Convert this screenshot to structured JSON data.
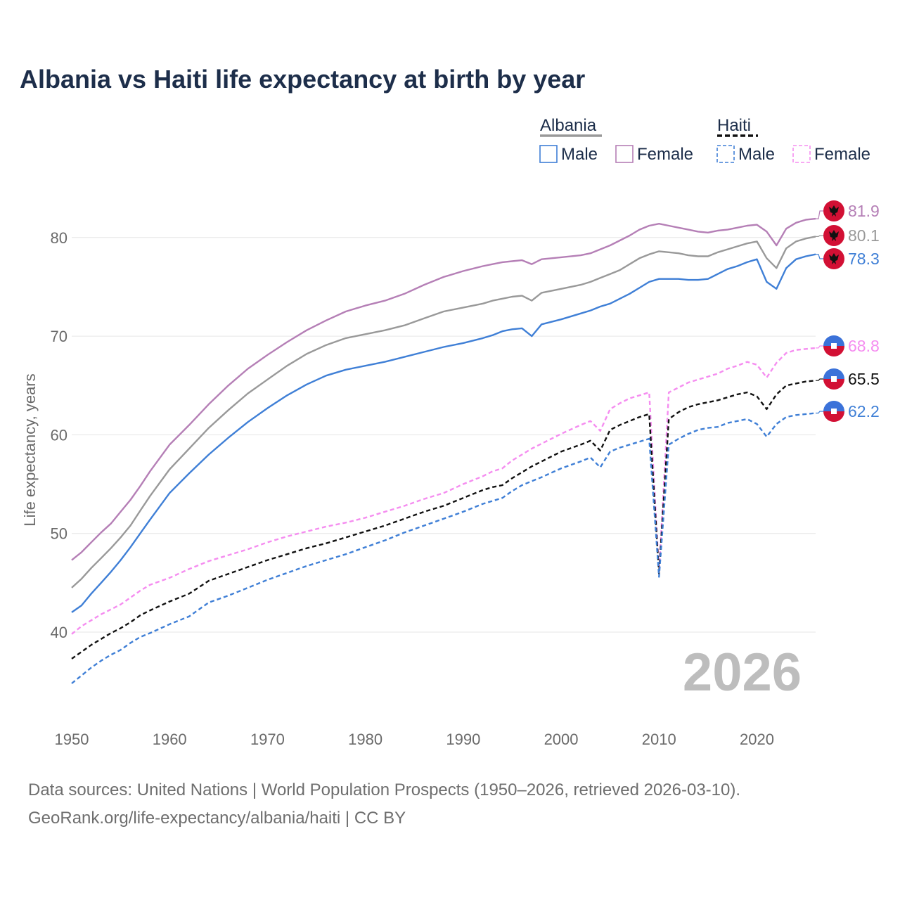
{
  "header": {
    "title": "Albania vs Haiti life expectancy at birth by year"
  },
  "legend": {
    "groups": [
      {
        "name": "Albania",
        "color": "#999999",
        "dash": false,
        "items": [
          {
            "label": "Male",
            "color": "#3f7fd6"
          },
          {
            "label": "Female",
            "color": "#b57fb6"
          }
        ]
      },
      {
        "name": "Haiti",
        "color": "#111111",
        "dash": true,
        "items": [
          {
            "label": "Male",
            "color": "#3f7fd6"
          },
          {
            "label": "Female",
            "color": "#f58df0"
          }
        ]
      }
    ]
  },
  "year_watermark": "2026",
  "footer": {
    "source_line": "Data sources: United Nations | World Population Prospects (1950–2026, retrieved 2026-03-10).",
    "credit_line": "GeoRank.org/life-expectancy/albania/haiti | CC BY"
  },
  "chart_data": {
    "type": "line",
    "title": "Albania vs Haiti life expectancy at birth by year",
    "xlabel": "",
    "ylabel": "Life expectancy, years",
    "xlim": [
      1950,
      2026
    ],
    "ylim": [
      33,
      84
    ],
    "xticks": [
      1950,
      1960,
      1970,
      1980,
      1990,
      2000,
      2010,
      2020
    ],
    "yticks": [
      40,
      50,
      60,
      70,
      80
    ],
    "grid": true,
    "x_anchors": [
      1950,
      1951,
      1952,
      1953,
      1954,
      1955,
      1956,
      1957,
      1958,
      1960,
      1962,
      1964,
      1966,
      1968,
      1970,
      1972,
      1974,
      1976,
      1978,
      1980,
      1982,
      1984,
      1986,
      1988,
      1990,
      1992,
      1993,
      1994,
      1995,
      1996,
      1997,
      1998,
      2000,
      2002,
      2003,
      2004,
      2005,
      2006,
      2007,
      2008,
      2009,
      2010,
      2011,
      2012,
      2013,
      2014,
      2015,
      2016,
      2017,
      2018,
      2019,
      2020,
      2021,
      2022,
      2023,
      2024,
      2025,
      2026
    ],
    "series": [
      {
        "name": "Albania Female",
        "country": "Albania",
        "sex": "Female",
        "color": "#b57fb6",
        "dashed": false,
        "label": "81.9",
        "values": [
          47.3,
          48.1,
          49.1,
          50.1,
          51.0,
          52.2,
          53.4,
          54.8,
          56.3,
          59.0,
          61.0,
          63.1,
          65.0,
          66.7,
          68.1,
          69.4,
          70.6,
          71.6,
          72.5,
          73.1,
          73.6,
          74.3,
          75.2,
          76.0,
          76.6,
          77.1,
          77.3,
          77.5,
          77.6,
          77.7,
          77.3,
          77.8,
          78.0,
          78.2,
          78.4,
          78.8,
          79.2,
          79.7,
          80.2,
          80.8,
          81.2,
          81.4,
          81.2,
          81.0,
          80.8,
          80.6,
          80.5,
          80.7,
          80.8,
          81.0,
          81.2,
          81.3,
          80.6,
          79.2,
          80.9,
          81.5,
          81.8,
          81.9
        ]
      },
      {
        "name": "Albania Total",
        "country": "Albania",
        "sex": "Total",
        "color": "#999999",
        "dashed": false,
        "label": "80.1",
        "values": [
          44.5,
          45.4,
          46.5,
          47.5,
          48.5,
          49.6,
          50.8,
          52.3,
          53.8,
          56.5,
          58.6,
          60.7,
          62.5,
          64.2,
          65.6,
          67.0,
          68.2,
          69.1,
          69.8,
          70.2,
          70.6,
          71.1,
          71.8,
          72.5,
          72.9,
          73.3,
          73.6,
          73.8,
          74.0,
          74.1,
          73.6,
          74.4,
          74.8,
          75.2,
          75.5,
          75.9,
          76.3,
          76.7,
          77.3,
          77.9,
          78.3,
          78.6,
          78.5,
          78.4,
          78.2,
          78.1,
          78.1,
          78.5,
          78.8,
          79.1,
          79.4,
          79.6,
          77.9,
          76.9,
          78.9,
          79.6,
          79.9,
          80.1
        ]
      },
      {
        "name": "Albania Male",
        "country": "Albania",
        "sex": "Male",
        "color": "#3f7fd6",
        "dashed": false,
        "label": "78.3",
        "values": [
          42.0,
          42.7,
          43.9,
          45.0,
          46.1,
          47.3,
          48.6,
          50.0,
          51.4,
          54.1,
          56.1,
          58.0,
          59.7,
          61.3,
          62.7,
          64.0,
          65.1,
          66.0,
          66.6,
          67.0,
          67.4,
          67.9,
          68.4,
          68.9,
          69.3,
          69.8,
          70.1,
          70.5,
          70.7,
          70.8,
          70.0,
          71.2,
          71.7,
          72.3,
          72.6,
          73.0,
          73.3,
          73.8,
          74.3,
          74.9,
          75.5,
          75.8,
          75.8,
          75.8,
          75.7,
          75.7,
          75.8,
          76.3,
          76.8,
          77.1,
          77.5,
          77.8,
          75.5,
          74.8,
          76.9,
          77.8,
          78.1,
          78.3
        ]
      },
      {
        "name": "Haiti Female",
        "country": "Haiti",
        "sex": "Female",
        "color": "#f58df0",
        "dashed": true,
        "label": "68.8",
        "values": [
          39.8,
          40.6,
          41.2,
          41.8,
          42.3,
          42.8,
          43.5,
          44.2,
          44.8,
          45.5,
          46.4,
          47.2,
          47.8,
          48.4,
          49.1,
          49.7,
          50.2,
          50.7,
          51.1,
          51.6,
          52.2,
          52.8,
          53.5,
          54.1,
          55.0,
          55.8,
          56.3,
          56.6,
          57.4,
          58.0,
          58.6,
          59.1,
          60.1,
          61.0,
          61.4,
          60.4,
          62.6,
          63.2,
          63.7,
          64.0,
          64.3,
          46.0,
          64.3,
          64.8,
          65.3,
          65.6,
          65.9,
          66.2,
          66.7,
          67.0,
          67.4,
          67.1,
          65.8,
          67.3,
          68.3,
          68.6,
          68.7,
          68.8
        ]
      },
      {
        "name": "Haiti Total",
        "country": "Haiti",
        "sex": "Total",
        "color": "#111111",
        "dashed": true,
        "label": "65.5",
        "values": [
          37.3,
          38.0,
          38.7,
          39.3,
          39.9,
          40.4,
          41.0,
          41.7,
          42.2,
          43.1,
          43.9,
          45.2,
          45.9,
          46.6,
          47.3,
          47.9,
          48.5,
          49.0,
          49.6,
          50.2,
          50.8,
          51.5,
          52.2,
          52.8,
          53.6,
          54.4,
          54.7,
          54.9,
          55.6,
          56.2,
          56.8,
          57.3,
          58.3,
          59.0,
          59.4,
          58.4,
          60.5,
          61.0,
          61.4,
          61.8,
          62.1,
          45.9,
          61.6,
          62.3,
          62.8,
          63.1,
          63.3,
          63.5,
          63.8,
          64.1,
          64.3,
          63.9,
          62.6,
          64.1,
          65.0,
          65.2,
          65.4,
          65.5
        ]
      },
      {
        "name": "Haiti Male",
        "country": "Haiti",
        "sex": "Male",
        "color": "#3f7fd6",
        "dashed": true,
        "label": "62.2",
        "values": [
          34.8,
          35.6,
          36.4,
          37.1,
          37.7,
          38.2,
          38.9,
          39.5,
          39.9,
          40.8,
          41.6,
          43.0,
          43.7,
          44.5,
          45.3,
          46.0,
          46.7,
          47.3,
          47.9,
          48.6,
          49.3,
          50.1,
          50.8,
          51.5,
          52.2,
          53.0,
          53.3,
          53.6,
          54.3,
          54.9,
          55.3,
          55.7,
          56.6,
          57.3,
          57.7,
          56.7,
          58.3,
          58.7,
          59.0,
          59.3,
          59.6,
          45.6,
          59.0,
          59.6,
          60.1,
          60.5,
          60.7,
          60.8,
          61.2,
          61.4,
          61.6,
          61.1,
          59.8,
          61.1,
          61.8,
          62.0,
          62.1,
          62.2
        ]
      }
    ]
  }
}
